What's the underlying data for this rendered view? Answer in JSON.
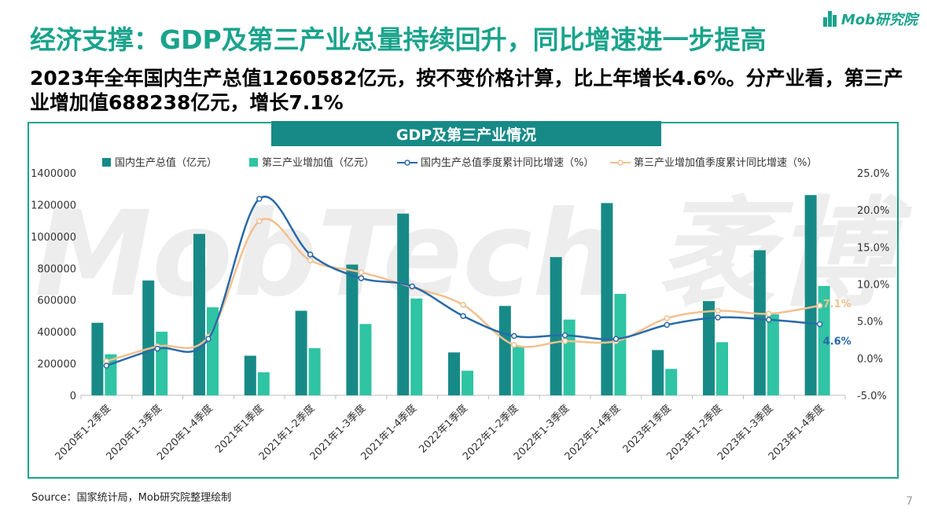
{
  "logo": {
    "text": "Mob研究院"
  },
  "title": "经济支撑：GDP及第三产业总量持续回升，同比增速进一步提高",
  "subtitle": "2023年全年国内生产总值1260582亿元，按不变价格计算，比上年增长4.6%。分产业看，第三产业增加值688238亿元，增长7.1%",
  "watermark": "MobTech 袤博",
  "source": "Source：国家统计局，Mob研究院整理绘制",
  "page_number": "7",
  "colors": {
    "accent": "#1aa38c",
    "bar1": "#178a87",
    "bar2": "#2fc4a4",
    "line1": "#2a6aa8",
    "line2": "#f2c08f"
  },
  "chart_data": {
    "type": "bar",
    "title": "GDP及第三产业情况",
    "categories": [
      "2020年1-2季度",
      "2020年1-3季度",
      "2020年1-4季度",
      "2021年1季度",
      "2021年1-2季度",
      "2021年1-3季度",
      "2021年1-4季度",
      "2022年1季度",
      "2022年1-2季度",
      "2022年1-3季度",
      "2022年1-4季度",
      "2023年1季度",
      "2023年1-2季度",
      "2023年1-3季度",
      "2023年1-4季度"
    ],
    "series": [
      {
        "name": "国内生产总值（亿元）",
        "type": "bar",
        "axis": "left",
        "values": [
          456614,
          722786,
          1015986,
          249310,
          532167,
          823131,
          1143670,
          270178,
          562642,
          870269,
          1210207,
          284997,
          593034,
          913027,
          1260582
        ]
      },
      {
        "name": "第三产业增加值（亿元）",
        "type": "bar",
        "axis": "left",
        "values": [
          258427,
          400479,
          553977,
          145355,
          296611,
          448982,
          609680,
          154927,
          306932,
          476752,
          638698,
          166365,
          334569,
          510031,
          688238
        ]
      },
      {
        "name": "国内生产总值季度累计同比增速（%）",
        "type": "line",
        "axis": "right",
        "values": [
          -1.0,
          1.3,
          2.6,
          21.5,
          14.0,
          10.8,
          9.7,
          5.7,
          3.0,
          3.1,
          2.6,
          4.5,
          5.5,
          5.2,
          4.6
        ]
      },
      {
        "name": "第三产业增加值季度累计同比增速（%）",
        "type": "line",
        "axis": "right",
        "values": [
          -0.4,
          1.6,
          2.9,
          18.5,
          13.2,
          11.6,
          9.6,
          7.2,
          1.8,
          2.3,
          2.3,
          5.4,
          6.4,
          6.0,
          7.1
        ]
      }
    ],
    "y_left": {
      "min": 0,
      "max": 1400000,
      "ticks": [
        "0",
        "200000",
        "400000",
        "600000",
        "800000",
        "1000000",
        "1200000",
        "1400000"
      ]
    },
    "y_right": {
      "min": -5.0,
      "max": 25.0,
      "ticks": [
        "-5.0%",
        "0.0%",
        "5.0%",
        "10.0%",
        "15.0%",
        "20.0%",
        "25.0%"
      ]
    },
    "end_labels": {
      "line1": "4.6%",
      "line2": "7.1%"
    },
    "legend_position": "top",
    "grid": false
  }
}
